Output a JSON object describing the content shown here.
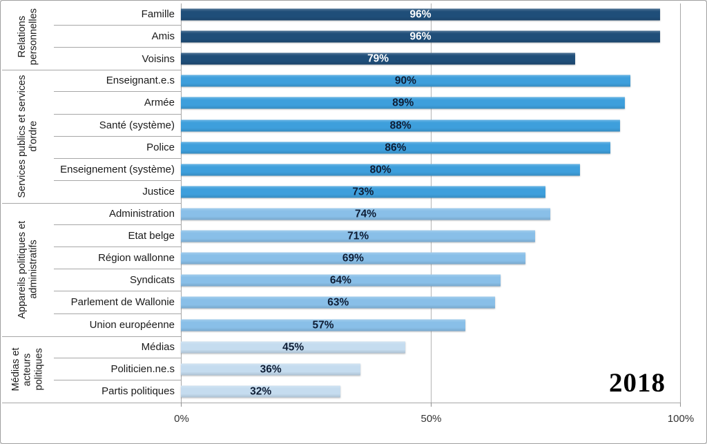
{
  "year_label": "2018",
  "chart_data": {
    "type": "bar",
    "orientation": "horizontal",
    "title": "",
    "xlabel": "",
    "ylabel": "",
    "xlim": [
      0,
      100
    ],
    "x_ticks": [
      {
        "label": "0%",
        "value": 0
      },
      {
        "label": "50%",
        "value": 50
      },
      {
        "label": "100%",
        "value": 100
      }
    ],
    "grid": "vertical-line-at-50%",
    "value_suffix": "%",
    "annotation": "2018",
    "colors": {
      "group1_bar": "#1F4E79",
      "group2_bar": "#3E9FDC",
      "group3_bar": "#89BFE8",
      "group4_bar": "#C5DCEF",
      "value_label_on_dark": "#FFFFFF",
      "value_label_on_light": "#0E1D35",
      "lines": "#A6A6A6"
    },
    "groups": [
      {
        "label": "Relations personnelles",
        "bar_color": "#1F4E79",
        "value_label_color": "#FFFFFF",
        "items": [
          {
            "label": "Famille",
            "value": 96
          },
          {
            "label": "Amis",
            "value": 96
          },
          {
            "label": "Voisins",
            "value": 79
          }
        ]
      },
      {
        "label": "Services publics et services d'ordre",
        "bar_color": "#3E9FDC",
        "value_label_color": "#0E1D35",
        "items": [
          {
            "label": "Enseignant.e.s",
            "value": 90
          },
          {
            "label": "Armée",
            "value": 89
          },
          {
            "label": "Santé (système)",
            "value": 88
          },
          {
            "label": "Police",
            "value": 86
          },
          {
            "label": "Enseignement (système)",
            "value": 80
          },
          {
            "label": "Justice",
            "value": 73
          }
        ]
      },
      {
        "label": "Appareils politiques et administratifs",
        "bar_color": "#89BFE8",
        "value_label_color": "#0E1D35",
        "items": [
          {
            "label": "Administration",
            "value": 74
          },
          {
            "label": "Etat belge",
            "value": 71
          },
          {
            "label": "Région wallonne",
            "value": 69
          },
          {
            "label": "Syndicats",
            "value": 64
          },
          {
            "label": "Parlement de Wallonie",
            "value": 63
          },
          {
            "label": "Union européenne",
            "value": 57
          }
        ]
      },
      {
        "label": "Médias et acteurs politiques",
        "bar_color": "#C5DCEF",
        "value_label_color": "#0E1D35",
        "items": [
          {
            "label": "Médias",
            "value": 45
          },
          {
            "label": "Politicien.ne.s",
            "value": 36
          },
          {
            "label": "Partis politiques",
            "value": 32
          }
        ]
      }
    ]
  }
}
